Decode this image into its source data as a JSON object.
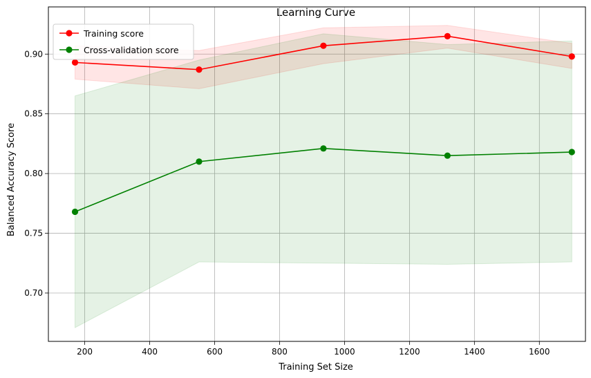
{
  "chart_data": {
    "type": "line",
    "title": "Learning Curve",
    "xlabel": "Training Set Size",
    "ylabel": "Balanced Accuracy Score",
    "xlim": [
      88,
      1742
    ],
    "ylim": [
      0.6595,
      0.9395
    ],
    "xticks": [
      200,
      400,
      600,
      800,
      1000,
      1200,
      1400,
      1600
    ],
    "yticks": [
      0.7,
      0.75,
      0.8,
      0.85,
      0.9
    ],
    "xtick_labels": [
      "200",
      "400",
      "600",
      "800",
      "1000",
      "1200",
      "1400",
      "1600"
    ],
    "ytick_labels": [
      "0.70",
      "0.75",
      "0.80",
      "0.85",
      "0.90"
    ],
    "grid": true,
    "legend_position": "top-left",
    "x": [
      170,
      552,
      935,
      1317,
      1700
    ],
    "series": [
      {
        "name": "Training score",
        "color": "#ff0000",
        "values": [
          0.893,
          0.887,
          0.907,
          0.915,
          0.898
        ],
        "band_upper": [
          0.907,
          0.903,
          0.922,
          0.924,
          0.909
        ],
        "band_lower": [
          0.879,
          0.871,
          0.892,
          0.905,
          0.888
        ]
      },
      {
        "name": "Cross-validation score",
        "color": "#008000",
        "values": [
          0.768,
          0.81,
          0.821,
          0.815,
          0.818
        ],
        "band_upper": [
          0.865,
          0.895,
          0.917,
          0.908,
          0.911
        ],
        "band_lower": [
          0.671,
          0.726,
          0.725,
          0.724,
          0.726
        ]
      }
    ]
  }
}
